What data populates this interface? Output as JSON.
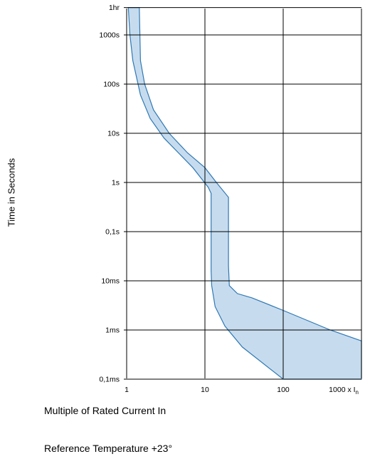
{
  "chart_data": {
    "type": "area",
    "xlabel": "Multiple of Rated Current In",
    "ylabel": "Time in Seconds",
    "annotation": "Reference Temperature +23°",
    "x_scale": "log",
    "y_scale": "log",
    "xlim": [
      1,
      1000
    ],
    "ylim_seconds": [
      0.0001,
      3600
    ],
    "x_ticks": [
      {
        "value": 1,
        "label": "1"
      },
      {
        "value": 10,
        "label": "10"
      },
      {
        "value": 100,
        "label": "100"
      },
      {
        "value": 1000,
        "label": "1000 x I",
        "sub": "n"
      }
    ],
    "y_ticks": [
      {
        "value": 3600,
        "label": "1hr"
      },
      {
        "value": 1000,
        "label": "1000s"
      },
      {
        "value": 100,
        "label": "100s"
      },
      {
        "value": 10,
        "label": "10s"
      },
      {
        "value": 1,
        "label": "1s"
      },
      {
        "value": 0.1,
        "label": "0,1s"
      },
      {
        "value": 0.01,
        "label": "10ms"
      },
      {
        "value": 0.001,
        "label": "1ms"
      },
      {
        "value": 0.0001,
        "label": "0,1ms"
      }
    ],
    "grid": true,
    "fill_color": "#c6dcee",
    "line_color": "#2f78b4",
    "band": {
      "name": "",
      "upper_curve": [
        [
          1.45,
          3600
        ],
        [
          1.5,
          300
        ],
        [
          1.7,
          100
        ],
        [
          2.2,
          30
        ],
        [
          3.5,
          10
        ],
        [
          6,
          4
        ],
        [
          10,
          2
        ],
        [
          14,
          1
        ],
        [
          20,
          0.5
        ],
        [
          20,
          0.02
        ],
        [
          20.5,
          0.008
        ],
        [
          26,
          0.0055
        ],
        [
          40,
          0.0045
        ],
        [
          100,
          0.0025
        ],
        [
          400,
          0.001
        ],
        [
          1000,
          0.0006
        ],
        [
          1000,
          0.0001
        ]
      ],
      "lower_curve": [
        [
          100,
          0.0001
        ],
        [
          30,
          0.00045
        ],
        [
          18,
          0.0012
        ],
        [
          13.5,
          0.003
        ],
        [
          12.2,
          0.008
        ],
        [
          12,
          0.016
        ],
        [
          12,
          0.6
        ],
        [
          11,
          0.8
        ],
        [
          7,
          2
        ],
        [
          3,
          8
        ],
        [
          2,
          20
        ],
        [
          1.5,
          60
        ],
        [
          1.2,
          300
        ],
        [
          1.1,
          1000
        ],
        [
          1.05,
          3600
        ]
      ]
    }
  }
}
